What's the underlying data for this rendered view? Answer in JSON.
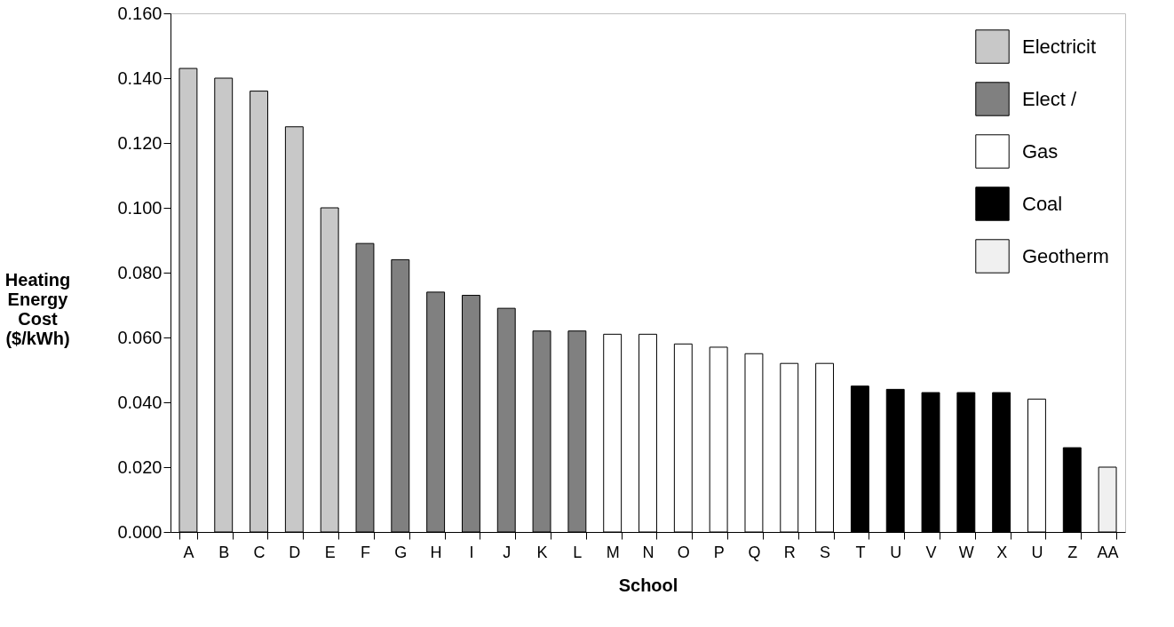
{
  "chart_data": {
    "type": "bar",
    "xlabel": "School",
    "ylabel": "Heating Energy Cost ($/kWh)",
    "categories": [
      "A",
      "B",
      "C",
      "D",
      "E",
      "F",
      "G",
      "H",
      "I",
      "J",
      "K",
      "L",
      "M",
      "N",
      "O",
      "P",
      "Q",
      "R",
      "S",
      "T",
      "U",
      "V",
      "W",
      "X",
      "U",
      "Z",
      "AA"
    ],
    "series": [
      {
        "name": "Electricit",
        "color": "#c8c8c8",
        "values": [
          0.143,
          0.14,
          0.136,
          0.125,
          0.1,
          null,
          null,
          null,
          null,
          null,
          null,
          null,
          null,
          null,
          null,
          null,
          null,
          null,
          null,
          null,
          null,
          null,
          null,
          null,
          null,
          null,
          null
        ]
      },
      {
        "name": "Elect /",
        "color": "#808080",
        "values": [
          null,
          null,
          null,
          null,
          null,
          0.089,
          0.084,
          0.074,
          0.073,
          0.069,
          0.062,
          0.062,
          null,
          null,
          null,
          null,
          null,
          null,
          null,
          null,
          null,
          null,
          null,
          null,
          null,
          null,
          null
        ]
      },
      {
        "name": "Gas",
        "color": "#ffffff",
        "values": [
          null,
          null,
          null,
          null,
          null,
          null,
          null,
          null,
          null,
          null,
          null,
          null,
          0.061,
          0.061,
          0.058,
          0.057,
          0.055,
          0.052,
          0.052,
          null,
          null,
          null,
          null,
          null,
          0.041,
          null,
          null
        ]
      },
      {
        "name": "Coal",
        "color": "#000000",
        "values": [
          null,
          null,
          null,
          null,
          null,
          null,
          null,
          null,
          null,
          null,
          null,
          null,
          null,
          null,
          null,
          null,
          null,
          null,
          null,
          0.045,
          0.044,
          0.043,
          0.043,
          0.043,
          null,
          0.026,
          null
        ]
      },
      {
        "name": "Geotherm",
        "color": "#f0f0f0",
        "values": [
          null,
          null,
          null,
          null,
          null,
          null,
          null,
          null,
          null,
          null,
          null,
          null,
          null,
          null,
          null,
          null,
          null,
          null,
          null,
          null,
          null,
          null,
          null,
          null,
          null,
          null,
          0.02
        ]
      }
    ],
    "ylim": [
      0,
      0.16
    ],
    "yticks": [
      {
        "value": 0,
        "label": "0.000"
      },
      {
        "value": 0.02,
        "label": "0.020"
      },
      {
        "value": 0.04,
        "label": "0.040"
      },
      {
        "value": 0.06,
        "label": "0.060"
      },
      {
        "value": 0.08,
        "label": "0.080"
      },
      {
        "value": 0.1,
        "label": "0.100"
      },
      {
        "value": 0.12,
        "label": "0.120"
      },
      {
        "value": 0.14,
        "label": "0.140"
      },
      {
        "value": 0.16,
        "label": "0.160"
      }
    ],
    "grid": false,
    "legend": "top right"
  }
}
